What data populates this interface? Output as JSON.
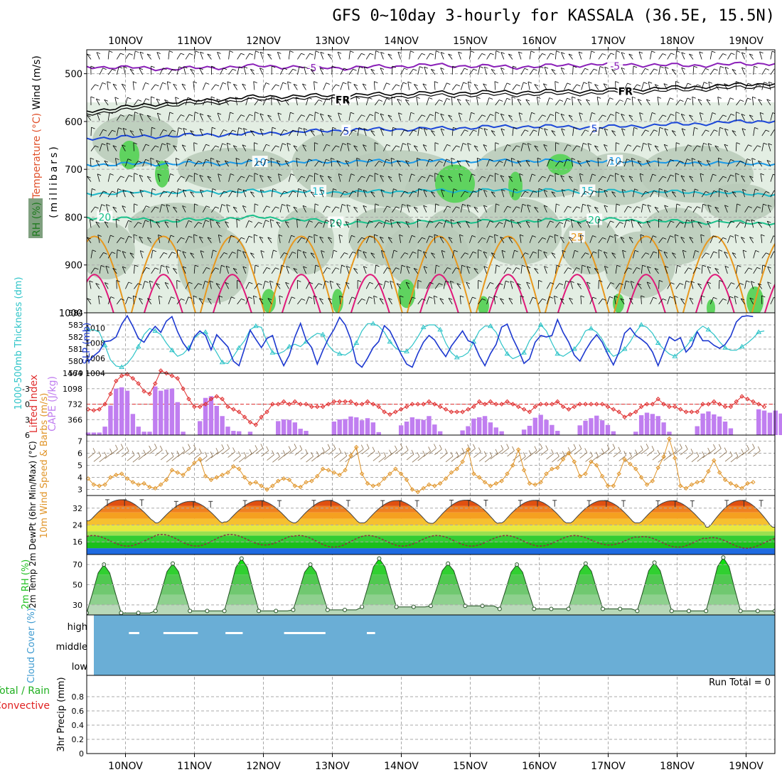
{
  "title": "GFS 0~10day 3-hourly for KASSALA (36.5E, 15.5N)",
  "colors": {
    "rh_shade_light": "#e3eee3",
    "rh_shade_mid": "#b9cab9",
    "rh_shade_dark": "#7fa07f",
    "rh_shade_green": "#5fd35f",
    "temp_m5": "#8a1fb8",
    "temp_fr": "#000000",
    "temp_5": "#1c47d8",
    "temp_10": "#1b9ae8",
    "temp_15": "#1cb8c8",
    "temp_20": "#19c08a",
    "temp_25": "#e8981e",
    "temp_30": "#e0197a",
    "thickness": "#2ec4c8",
    "slp": "#1c38d0",
    "cape": "#c07ef0",
    "lifted": "#e03030",
    "wind_speed": "#e0952a",
    "temp_fill_1": "#f08020",
    "temp_fill_2": "#e05010",
    "temp_fill_3": "#c02808",
    "rh2m": "#20c020",
    "cloud": "#6aaed6"
  },
  "chart_data": [
    {
      "type": "area",
      "name": "cross_section",
      "ylabel_left": "(millibars)",
      "ylabel_parts": [
        "RH (%)",
        "Temperature (°C)",
        "Wind (m/s)"
      ],
      "yticks": [
        500,
        600,
        700,
        800,
        900,
        1000
      ],
      "ylim": [
        1000,
        450
      ],
      "xlim": [
        0,
        10
      ],
      "top_labels": [
        "10NOV",
        "11NOV",
        "12NOV",
        "13NOV",
        "14NOV",
        "15NOV",
        "16NOV",
        "17NOV",
        "18NOV",
        "19NOV"
      ],
      "isotherms": [
        {
          "label": "-5",
          "levels": [
            485,
            490,
            484,
            488,
            482,
            486,
            480,
            483,
            478
          ]
        },
        {
          "label": "FR",
          "levels": [
            578,
            560,
            548,
            545,
            540,
            538,
            535,
            528,
            520
          ]
        },
        {
          "label": "5",
          "levels": [
            635,
            630,
            625,
            618,
            615,
            610,
            612,
            605,
            598
          ]
        },
        {
          "label": "10",
          "levels": [
            690,
            688,
            686,
            684,
            683,
            682,
            684,
            686,
            688
          ]
        },
        {
          "label": "15",
          "levels": [
            750,
            748,
            746,
            748,
            745,
            744,
            746,
            748,
            752
          ]
        },
        {
          "label": "20",
          "levels": [
            800,
            808,
            800,
            812,
            810,
            808,
            805,
            810,
            812
          ]
        }
      ],
      "isotherm_labels": [
        {
          "text": "-5",
          "x": 3.2,
          "level": 488
        },
        {
          "text": "-5",
          "x": 7.6,
          "level": 484
        },
        {
          "text": "FR",
          "x": 3.65,
          "level": 555
        },
        {
          "text": "FR",
          "x": 7.75,
          "level": 537
        },
        {
          "text": "5",
          "x": 3.7,
          "level": 620
        },
        {
          "text": "5",
          "x": 7.3,
          "level": 615
        },
        {
          "text": "10",
          "x": 2.45,
          "level": 685
        },
        {
          "text": "10",
          "x": 7.6,
          "level": 683
        },
        {
          "text": "15",
          "x": 3.3,
          "level": 746
        },
        {
          "text": "15",
          "x": 7.2,
          "level": 745
        },
        {
          "text": "20",
          "x": 0.2,
          "level": 800
        },
        {
          "text": "20",
          "x": 3.55,
          "level": 812
        },
        {
          "text": "20",
          "x": 7.3,
          "level": 806
        },
        {
          "text": "25",
          "x": 7.05,
          "level": 842
        }
      ]
    },
    {
      "type": "line",
      "name": "thickness_slp",
      "ylabel": "1000-500mb Thickness (dm)",
      "ylabel2": "SLP (mb)",
      "left_ticks": [
        579,
        580,
        581,
        582,
        583,
        584
      ],
      "right_ticks": [
        1004,
        1006,
        1008,
        1010
      ],
      "thickness_ylim": [
        579,
        584
      ],
      "slp_ylim": [
        1004,
        1012
      ],
      "series": [
        {
          "name": "Thickness",
          "values": [
            582.6,
            582.6,
            582.4,
            581.3,
            580.1,
            579.6,
            579.5,
            579.8,
            580.4,
            581.2,
            582.2,
            582.7,
            582.5,
            582.2,
            581.5,
            580.9,
            580.4,
            580.6,
            581.1,
            581.9,
            582.3,
            582.4,
            581.5,
            580.7,
            579.9,
            579.8,
            580.4,
            581.1,
            581.7,
            582.6,
            582.9,
            582.8,
            581.6,
            580.7,
            580.6,
            580.8,
            581.2,
            581.4,
            581.2,
            581.6,
            582.0,
            582.3,
            582.2,
            581.3,
            580.8,
            580.6,
            580.5,
            580.8,
            581.5,
            582.5,
            583.1,
            583.1,
            582.9,
            582.4,
            581.6,
            581.1,
            580.8,
            580.8,
            581.3,
            582.0,
            582.8,
            583.0,
            583.0,
            582.6,
            581.5,
            580.7,
            580.3,
            580.4,
            580.7,
            581.6,
            582.5,
            582.9,
            582.9,
            582.4,
            581.4,
            580.6,
            580.2,
            580.4,
            580.7,
            581.7,
            582.3,
            583.0,
            582.5,
            581.5,
            580.6,
            580.4,
            580.7,
            581.0,
            581.6,
            582.5,
            582.7,
            582.4,
            581.8,
            580.9,
            580.4,
            580.6,
            581.0,
            581.6,
            582.4,
            583.0,
            582.8,
            582.3,
            581.5,
            581.0,
            580.6,
            580.4,
            580.8,
            581.2,
            581.8,
            582.5,
            582.9,
            582.6,
            582.2,
            581.6,
            581.1,
            580.9,
            580.9,
            581.2,
            581.5,
            581.9,
            582.4,
            582.5
          ]
        },
        {
          "name": "SLP",
          "values": [
            1005.5,
            1006.3,
            1006.9,
            1008.2,
            1008.3,
            1008.8,
            1010.5,
            1011.6,
            1010.2,
            1008.6,
            1008.1,
            1009.3,
            1010.2,
            1009.4,
            1010.9,
            1011.5,
            1009.5,
            1008.0,
            1007.0,
            1008.8,
            1009.6,
            1009.0,
            1007.1,
            1009.1,
            1008.3,
            1007.5,
            1005.6,
            1005.0,
            1007.3,
            1009.7,
            1008.5,
            1007.4,
            1008.6,
            1009.0,
            1006.6,
            1005.0,
            1006.4,
            1008.8,
            1010.6,
            1008.4,
            1007.4,
            1005.2,
            1007.0,
            1008.6,
            1009.8,
            1011.4,
            1010.4,
            1008.5,
            1005.4,
            1004.8,
            1006.0,
            1007.4,
            1008.2,
            1010.3,
            1009.6,
            1008.1,
            1006.5,
            1005.2,
            1004.8,
            1006.6,
            1008.1,
            1009.0,
            1008.4,
            1007.2,
            1006.2,
            1007.6,
            1008.6,
            1009.6,
            1008.3,
            1008.0,
            1006.3,
            1005.0,
            1006.6,
            1007.8,
            1010.1,
            1010.5,
            1008.6,
            1007.1,
            1005.3,
            1005.9,
            1008.1,
            1009.0,
            1008.8,
            1009.0,
            1011.1,
            1009.4,
            1008.1,
            1006.4,
            1005.6,
            1007.0,
            1008.2,
            1009.1,
            1008.1,
            1006.5,
            1005.1,
            1006.8,
            1009.3,
            1010.0,
            1009.0,
            1008.5,
            1007.9,
            1006.8,
            1005.0,
            1006.9,
            1008.8,
            1008.3,
            1008.7,
            1006.8,
            1007.6,
            1009.5,
            1008.3,
            1008.3,
            1007.7,
            1007.3,
            1007.8,
            1008.9,
            1010.8,
            1011.5,
            1011.6,
            1011.5
          ]
        }
      ]
    },
    {
      "type": "bar",
      "name": "cape_lifted",
      "ylabel": "Lifted Index",
      "ylabel2": "CAPE (J/kg)",
      "left_ticks": [
        -3,
        0,
        3,
        6
      ],
      "right_ticks": [
        366,
        732,
        1098,
        1464
      ],
      "cape_ylim": [
        0,
        1464
      ],
      "lifted_ylim": [
        6,
        -6
      ],
      "series": [
        {
          "name": "CAPE",
          "values": [
            60,
            60,
            60,
            200,
            700,
            1100,
            1130,
            1050,
            500,
            200,
            80,
            80,
            1150,
            1050,
            1080,
            1100,
            780,
            80,
            0,
            0,
            330,
            880,
            920,
            690,
            450,
            200,
            100,
            90,
            0,
            80,
            0,
            0,
            0,
            0,
            330,
            370,
            360,
            300,
            150,
            100,
            0,
            0,
            0,
            0,
            320,
            370,
            380,
            440,
            420,
            350,
            400,
            300,
            70,
            0,
            0,
            0,
            230,
            320,
            420,
            380,
            360,
            450,
            250,
            90,
            0,
            0,
            0,
            110,
            210,
            390,
            420,
            450,
            300,
            180,
            90,
            0,
            0,
            0,
            130,
            220,
            410,
            480,
            360,
            240,
            100,
            0,
            0,
            0,
            230,
            340,
            400,
            460,
            350,
            240,
            90,
            0,
            0,
            0,
            80,
            470,
            530,
            500,
            450,
            300,
            80,
            0,
            0,
            0,
            0,
            210,
            510,
            560,
            490,
            440,
            320,
            160,
            0,
            0,
            0,
            0,
            610,
            580,
            530,
            580,
            510
          ]
        },
        {
          "name": "Lifted Index",
          "values": [
            1.0,
            1.2,
            1.0,
            0.0,
            -2.0,
            -4.5,
            -5.5,
            -5.8,
            -5.0,
            -4.0,
            -2.5,
            -2.0,
            -4.0,
            -6.5,
            -6.0,
            -5.5,
            -5.0,
            -3.0,
            -1.0,
            0.5,
            0.5,
            0.0,
            -1.0,
            -1.5,
            -1.0,
            0.5,
            1.0,
            1.5,
            2.5,
            3.5,
            4.0,
            2.5,
            1.5,
            0.0,
            0.0,
            -0.5,
            0.0,
            -0.5,
            0.0,
            0.0,
            0.5,
            0.5,
            0.5,
            0.0,
            -0.5,
            -0.5,
            -0.5,
            -0.5,
            0.0,
            0.0,
            -0.5,
            0.0,
            0.5,
            1.5,
            2.0,
            1.5,
            1.0,
            0.5,
            0.0,
            0.0,
            0.0,
            -0.5,
            0.0,
            0.5,
            1.0,
            1.5,
            1.5,
            1.5,
            1.0,
            0.5,
            -0.5,
            0.0,
            -0.5,
            0.0,
            0.0,
            -0.5,
            0.0,
            0.5,
            1.0,
            1.5,
            0.5,
            0.0,
            0.0,
            0.0,
            -0.5,
            0.5,
            1.0,
            0.5,
            0.0,
            0.0,
            0.0,
            0.0,
            0.0,
            0.5,
            1.0,
            1.5,
            2.5,
            2.0,
            1.5,
            0.5,
            0.0,
            0.0,
            -1.0,
            0.0,
            0.5,
            0.5,
            1.0,
            1.5,
            1.5,
            1.5,
            0.0,
            0.0,
            -0.5,
            0.0,
            0.5,
            0.5,
            -0.5,
            -1.5,
            -1.0,
            -0.5,
            0.0,
            0.5
          ]
        }
      ]
    },
    {
      "type": "line",
      "name": "wind10m",
      "ylabel": "10m Wind Speed & Barbs (m/s)",
      "yticks": [
        3,
        4,
        5,
        6,
        7
      ],
      "ylim": [
        2.5,
        7.5
      ],
      "series": [
        {
          "name": "Wind Speed",
          "values": [
            3.9,
            3.4,
            3.3,
            3.4,
            4.0,
            4.2,
            4.3,
            3.9,
            3.6,
            3.4,
            3.5,
            3.2,
            3.1,
            3.4,
            3.8,
            4.6,
            4.4,
            4.2,
            4.7,
            5.2,
            5.5,
            4.1,
            3.8,
            4.0,
            4.2,
            4.4,
            4.9,
            4.7,
            4.0,
            3.5,
            3.6,
            3.3,
            3.0,
            3.3,
            3.7,
            3.9,
            3.8,
            3.3,
            3.2,
            3.6,
            3.7,
            4.1,
            4.7,
            4.6,
            4.4,
            4.2,
            4.6,
            5.8,
            6.5,
            4.3,
            3.5,
            3.3,
            3.4,
            3.9,
            4.3,
            4.7,
            4.3,
            3.8,
            3.0,
            2.8,
            3.1,
            3.4,
            3.3,
            3.5,
            3.9,
            4.4,
            4.7,
            5.3,
            6.3,
            4.3,
            4.0,
            3.6,
            3.3,
            3.5,
            3.7,
            4.3,
            5.0,
            6.3,
            4.6,
            3.5,
            3.4,
            3.6,
            4.3,
            4.7,
            4.8,
            5.5,
            6.0,
            5.3,
            4.1,
            4.3,
            5.3,
            5.0,
            4.1,
            3.3,
            3.3,
            4.3,
            5.5,
            5.1,
            4.7,
            4.0,
            3.4,
            3.7,
            4.8,
            5.7,
            7.2,
            5.6,
            3.3,
            3.1,
            3.4,
            3.6,
            3.7,
            4.5,
            5.4,
            4.4,
            3.8,
            3.5,
            3.3,
            3.1,
            3.5,
            3.6
          ]
        }
      ]
    },
    {
      "type": "area",
      "name": "temp_dewpt",
      "ylabel": "2m Temp 2m DewPt (6hr Min/Max) (°C)",
      "yticks": [
        16,
        24,
        32
      ],
      "ylim": [
        10,
        38
      ],
      "series": [
        {
          "name": "2m Temp (daily max)",
          "values": [
            36.0,
            35.2,
            35.6,
            35.7,
            35.6,
            35.8,
            35.7,
            35.6,
            35.5,
            35.7
          ]
        },
        {
          "name": "2m Temp (daily min)",
          "values": [
            26.0,
            25.0,
            25.5,
            25.0,
            25.0,
            24.8,
            25.0,
            25.0,
            25.0,
            23.0
          ]
        },
        {
          "name": "2m DewPt (max)",
          "values": [
            19.0,
            19.5,
            19.5,
            19.0,
            19.0,
            19.0,
            19.0,
            19.0,
            18.5,
            18.0
          ]
        },
        {
          "name": "2m DewPt (min)",
          "values": [
            14.0,
            14.0,
            14.5,
            13.5,
            14.0,
            14.0,
            14.0,
            14.5,
            13.5,
            13.0
          ]
        }
      ]
    },
    {
      "type": "area",
      "name": "rh2m",
      "ylabel": "2m RH (%)",
      "yticks": [
        30,
        50,
        70
      ],
      "ylim": [
        20,
        80
      ],
      "series": [
        {
          "name": "2m RH (daily max)",
          "values": [
            70,
            71,
            76,
            70,
            76,
            71,
            70,
            71,
            72,
            77
          ]
        },
        {
          "name": "2m RH (daily min)",
          "values": [
            22,
            24,
            24,
            25,
            28,
            29,
            26,
            26,
            24,
            24
          ]
        }
      ]
    },
    {
      "type": "bar",
      "name": "cloud_cover",
      "ylabel": "Cloud Cover (%)",
      "level_labels": [
        "high",
        "middle",
        "low"
      ],
      "gaps_high": [
        [
          0.55,
          0.7
        ],
        [
          1.05,
          1.55
        ],
        [
          1.95,
          2.2
        ],
        [
          2.8,
          3.4
        ],
        [
          4.0,
          4.12
        ]
      ]
    },
    {
      "type": "bar",
      "name": "precip",
      "ylabel": "3hr Precip (mm)",
      "ylabel_left_a": "Total / Rain",
      "ylabel_left_b": "Convective",
      "yticks": [
        0,
        0.2,
        0.4,
        0.6,
        0.8
      ],
      "ylim": [
        0,
        1
      ],
      "values": [],
      "run_total_label": "Run Total = 0"
    }
  ],
  "bottom_labels": [
    "10NOV",
    "11NOV",
    "12NOV",
    "13NOV",
    "14NOV",
    "15NOV",
    "16NOV",
    "17NOV",
    "18NOV",
    "19NOV"
  ]
}
